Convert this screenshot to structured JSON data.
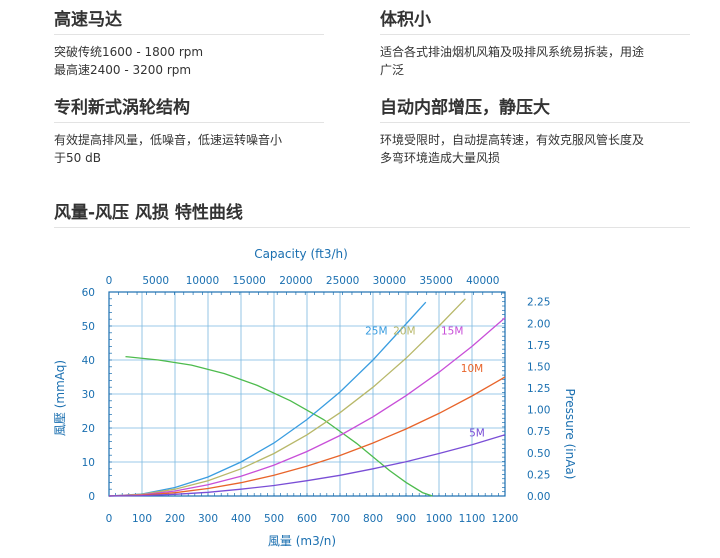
{
  "features": [
    {
      "title": "高速马达",
      "desc": "突破传统1600 - 1800 rpm\n最高速2400 - 3200 rpm"
    },
    {
      "title": "体积小",
      "desc": "适合各式排油烟机风箱及吸排风系统易拆装，用途\n广泛"
    },
    {
      "title": "专利新式涡轮结构",
      "desc": "有效提高排风量，低噪音，低速运转噪音小\n于50 dB"
    },
    {
      "title": "自动内部增压，静压大",
      "desc": "环境受限时，自动提高转速，有效克服风管长度及\n多弯环境造成大量风损"
    }
  ],
  "section_title": "风量-风压  风损  特性曲线",
  "colors": {
    "axis": "#1a6fb0",
    "grid": "#7ab8e0",
    "fan_curve": "#4dbb4d",
    "25M": "#3a9de0",
    "20M": "#b8b86a",
    "15M": "#c84fd8",
    "10M": "#e8642a",
    "5M": "#7a4ed6"
  },
  "chart_data": {
    "type": "line",
    "title": "",
    "top_axis_label": "Capacity (ft3/h)",
    "xlabel": "風量 (m3/n)",
    "ylabel_left": "風壓 (mmAq)",
    "ylabel_right": "Pressure (inAa)",
    "xlim": [
      0,
      1200
    ],
    "ylim": [
      0,
      60
    ],
    "xticks": [
      0,
      100,
      200,
      300,
      400,
      500,
      600,
      700,
      800,
      900,
      1000,
      1100,
      1200
    ],
    "yticks": [
      0,
      10,
      20,
      30,
      40,
      50,
      60
    ],
    "top_ticks": [
      0,
      5000,
      10000,
      15000,
      20000,
      25000,
      30000,
      35000,
      40000
    ],
    "right_ticks": [
      "0.00",
      "0.25",
      "0.50",
      "0.75",
      "1.00",
      "1.25",
      "1.50",
      "1.75",
      "2.00",
      "2.25"
    ],
    "right_tick_values": [
      0,
      0.25,
      0.5,
      0.75,
      1.0,
      1.25,
      1.5,
      1.75,
      2.0,
      2.25
    ],
    "top_tick_labels": [
      "0",
      "5000",
      "10000",
      "15000",
      "20000",
      "25000",
      "30000",
      "35000",
      "40000"
    ],
    "grid": true,
    "series": [
      {
        "name": "",
        "key": "fan_curve",
        "x": [
          50,
          150,
          250,
          350,
          450,
          550,
          650,
          700,
          750,
          800,
          850,
          900,
          950,
          980
        ],
        "y": [
          41,
          40,
          38.5,
          36,
          32.5,
          28,
          22.5,
          19,
          15.5,
          11.5,
          7.5,
          4,
          1,
          0
        ]
      },
      {
        "name": "25M",
        "key": "25M",
        "x": [
          0,
          100,
          200,
          300,
          400,
          500,
          600,
          700,
          800,
          900,
          960
        ],
        "y": [
          0,
          0.6,
          2.5,
          5.6,
          10,
          15.6,
          22.5,
          30.6,
          40,
          50.6,
          57
        ]
      },
      {
        "name": "20M",
        "key": "20M",
        "x": [
          0,
          100,
          200,
          300,
          400,
          500,
          600,
          700,
          800,
          900,
          1000,
          1080
        ],
        "y": [
          0,
          0.5,
          2,
          4.5,
          8,
          12.5,
          18,
          24.5,
          32,
          40.5,
          50,
          58
        ]
      },
      {
        "name": "15M",
        "key": "15M",
        "x": [
          0,
          100,
          200,
          300,
          400,
          500,
          600,
          700,
          800,
          900,
          1000,
          1100,
          1200
        ],
        "y": [
          0,
          0.36,
          1.46,
          3.3,
          5.8,
          9.1,
          13.1,
          17.8,
          23.3,
          29.5,
          36.4,
          44,
          52.4
        ]
      },
      {
        "name": "10M",
        "key": "10M",
        "x": [
          0,
          100,
          200,
          300,
          400,
          500,
          600,
          700,
          800,
          900,
          1000,
          1100,
          1200
        ],
        "y": [
          0,
          0.24,
          0.97,
          2.2,
          3.9,
          6.1,
          8.8,
          11.9,
          15.6,
          19.7,
          24.3,
          29.4,
          35
        ]
      },
      {
        "name": "5M",
        "key": "5M",
        "x": [
          0,
          100,
          200,
          300,
          400,
          500,
          600,
          700,
          800,
          900,
          1000,
          1100,
          1200
        ],
        "y": [
          0,
          0.12,
          0.5,
          1.1,
          2,
          3.1,
          4.5,
          6.1,
          8,
          10.1,
          12.5,
          15.1,
          18
        ]
      }
    ],
    "series_label_positions": [
      {
        "name": "25M",
        "x": 810,
        "y": 47.5
      },
      {
        "name": "20M",
        "x": 895,
        "y": 47.5
      },
      {
        "name": "15M",
        "x": 1040,
        "y": 47.5
      },
      {
        "name": "10M",
        "x": 1100,
        "y": 36.5
      },
      {
        "name": "5M",
        "x": 1115,
        "y": 17.5
      }
    ]
  }
}
